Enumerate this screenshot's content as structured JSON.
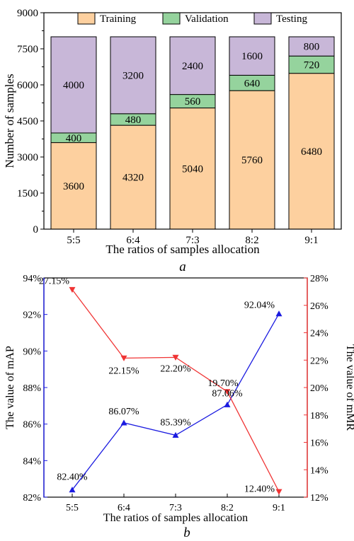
{
  "chart_data": [
    {
      "type": "bar",
      "stacked": true,
      "panel_label": "a",
      "categories": [
        "5:5",
        "6:4",
        "7:3",
        "8:2",
        "9:1"
      ],
      "series": [
        {
          "name": "Training",
          "values": [
            3600,
            4320,
            5040,
            5760,
            6480
          ],
          "labels": [
            "3600",
            "4320",
            "5040",
            "5760",
            "6480"
          ],
          "color": "#FDD09F"
        },
        {
          "name": "Validation",
          "values": [
            400,
            480,
            560,
            640,
            720
          ],
          "labels": [
            "400",
            "480",
            "560",
            "640",
            "720"
          ],
          "color": "#95D39D"
        },
        {
          "name": "Testing",
          "values": [
            4000,
            3200,
            2400,
            1600,
            800
          ],
          "labels": [
            "4000",
            "3200",
            "2400",
            "1600",
            "800"
          ],
          "color": "#C8B7D8"
        }
      ],
      "xlabel": "The ratios of samples allocation",
      "ylabel": "Number of samples",
      "ylim": [
        0,
        9000
      ],
      "yticks": [
        0,
        1500,
        3000,
        4500,
        6000,
        7500,
        9000
      ],
      "legend_position": "top"
    },
    {
      "type": "line",
      "panel_label": "b",
      "categories": [
        "5:5",
        "6:4",
        "7:3",
        "8:2",
        "9:1"
      ],
      "series": [
        {
          "axis": "left",
          "values": [
            82.4,
            86.07,
            85.39,
            87.06,
            92.04
          ],
          "labels": [
            "82.40%",
            "86.07%",
            "85.39%",
            "87.06%",
            "92.04%"
          ],
          "color": "#1B1BE0",
          "marker": "triangle-up"
        },
        {
          "axis": "right",
          "values": [
            27.15,
            22.15,
            22.2,
            19.7,
            12.4
          ],
          "labels": [
            "27.15%",
            "22.15%",
            "22.20%",
            "19.70%",
            "12.40%"
          ],
          "color": "#F03434",
          "marker": "triangle-down"
        }
      ],
      "xlabel": "The ratios of samples allocation",
      "ylabel_left": "The value of mAP",
      "ylabel_right": "The value of mMR",
      "ylim_left": [
        82,
        94
      ],
      "yticks_left": [
        "82%",
        "84%",
        "86%",
        "88%",
        "90%",
        "92%",
        "94%"
      ],
      "ylim_right": [
        12,
        28
      ],
      "yticks_right": [
        "12%",
        "14%",
        "16%",
        "18%",
        "20%",
        "22%",
        "24%",
        "26%",
        "28%"
      ]
    }
  ]
}
